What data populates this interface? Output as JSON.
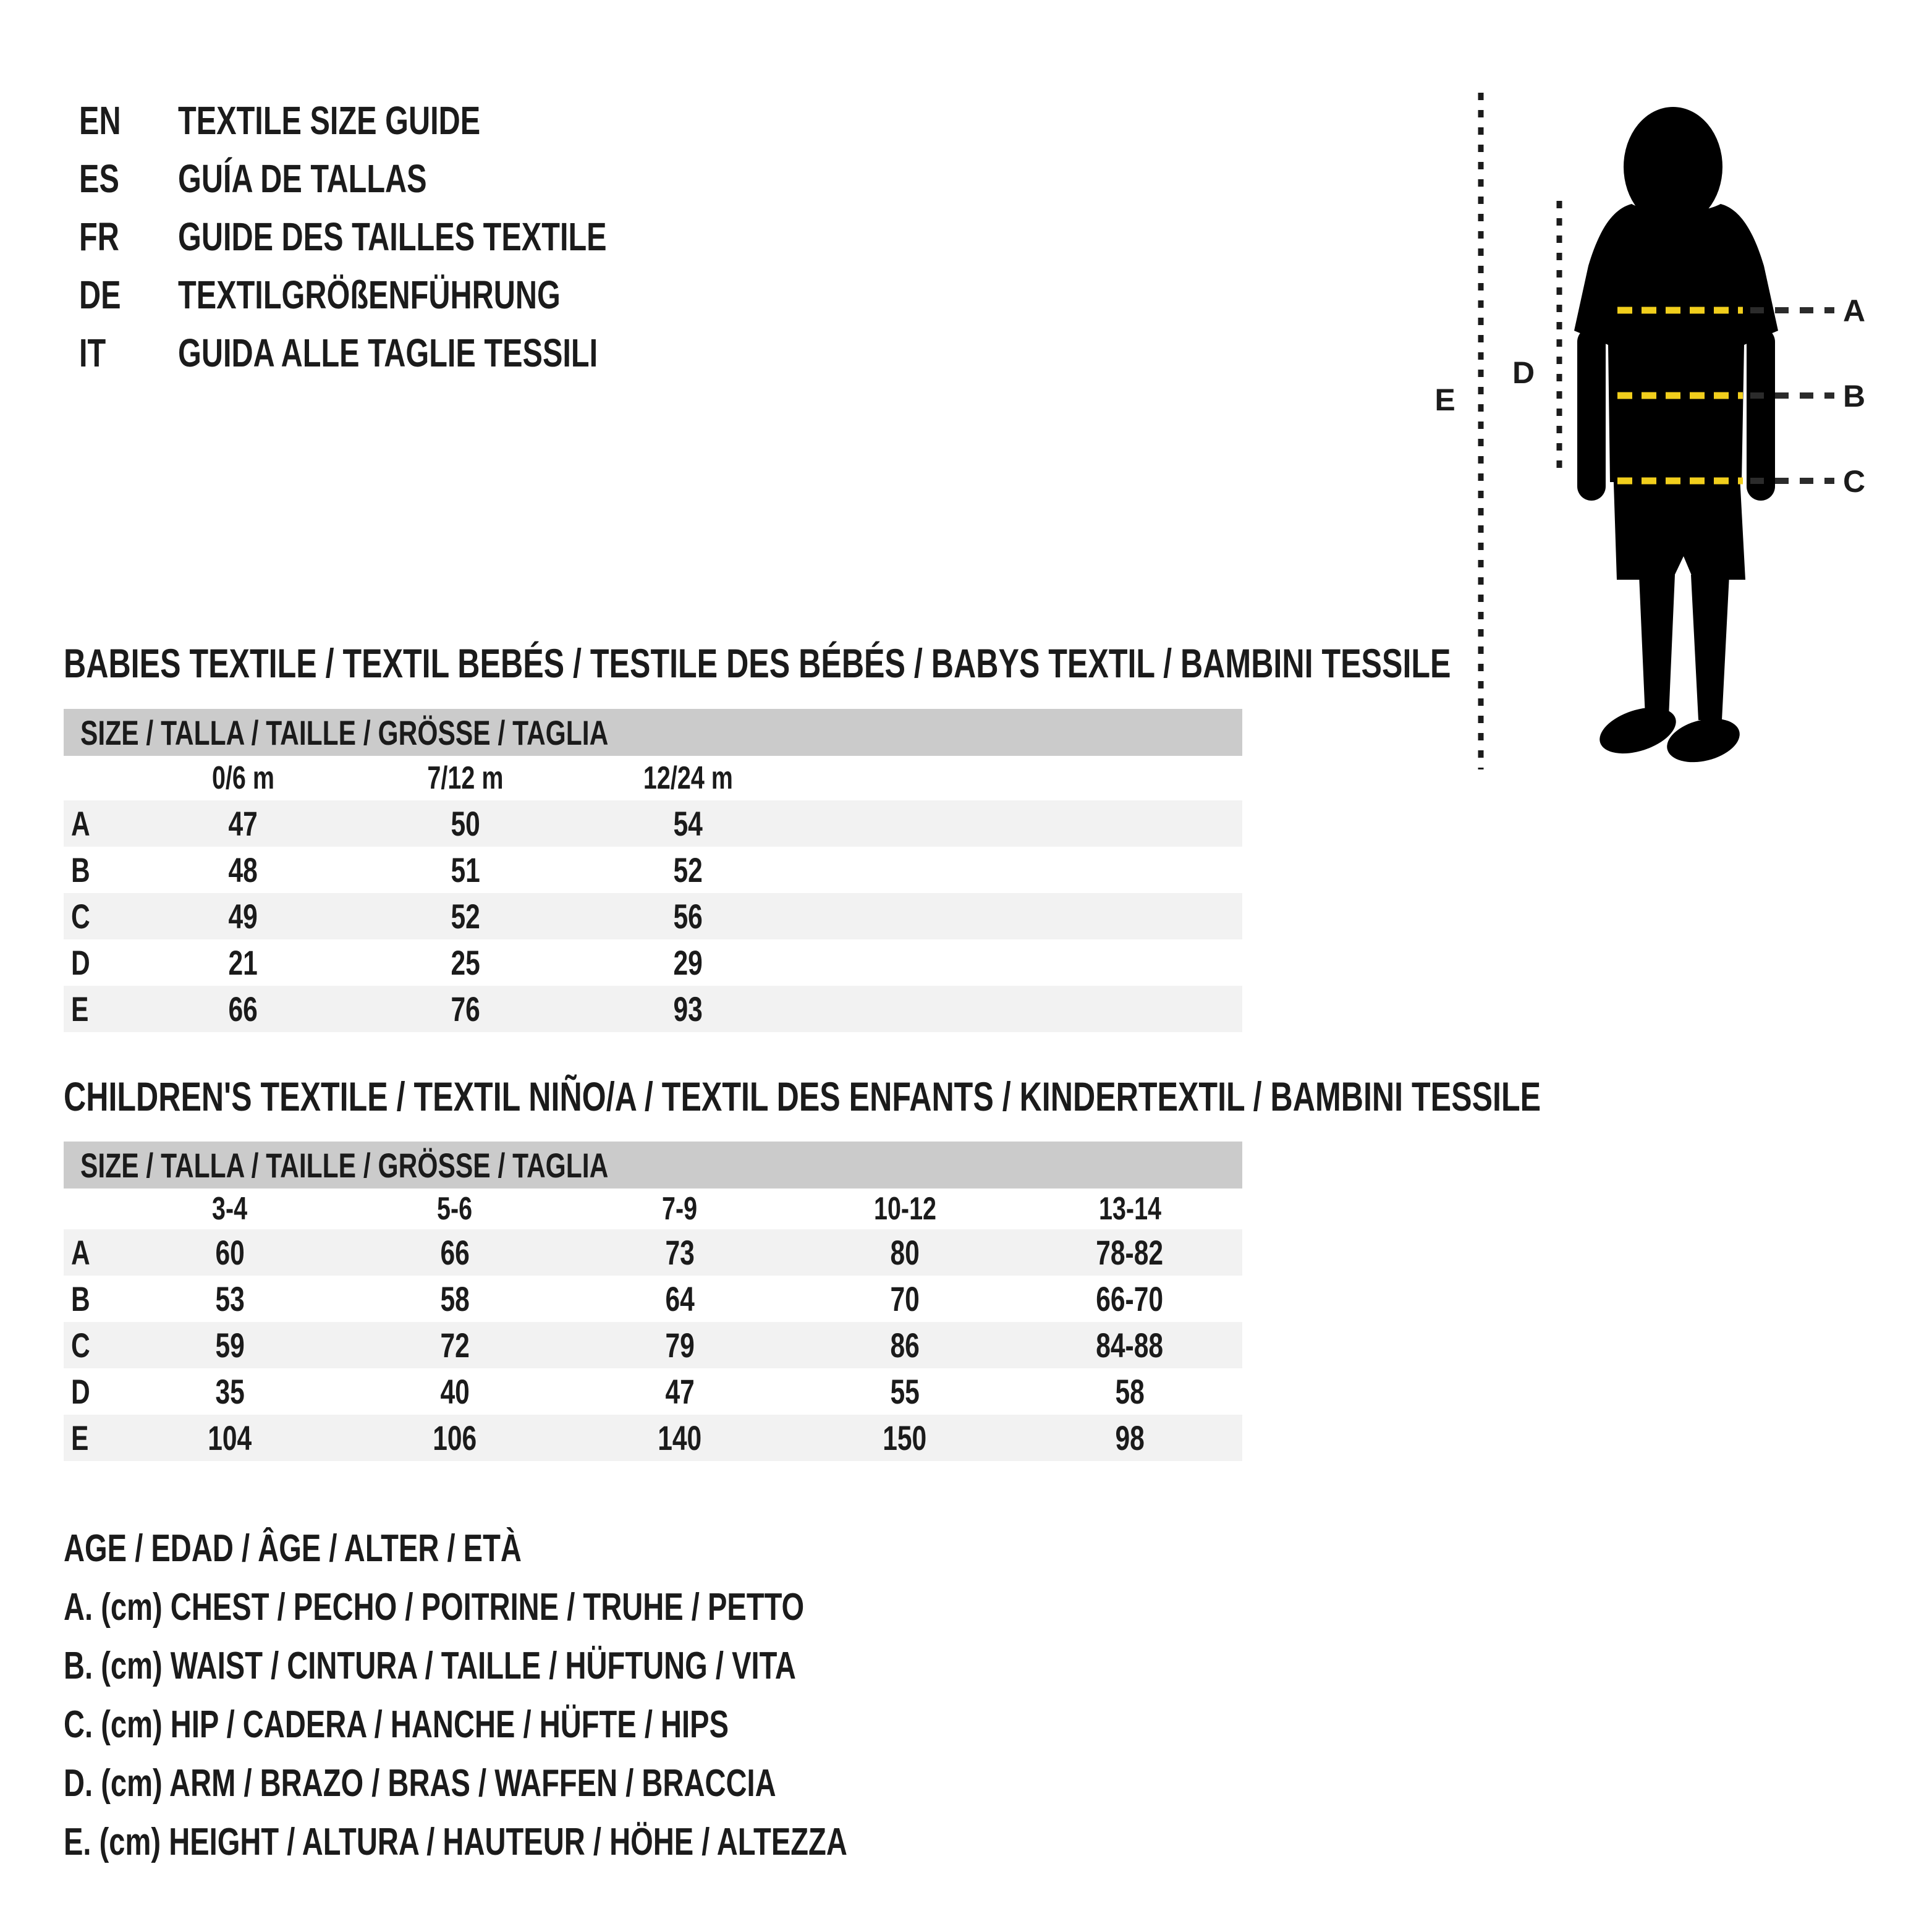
{
  "colors": {
    "text": "#1b1b1b",
    "header_bar": "#cbcbcb",
    "row_stripe": "#f2f2f2",
    "dash_yellow": "#f1ce1c",
    "dash_dark": "#2b2b2b",
    "silhouette": "#000000"
  },
  "languages": [
    {
      "code": "EN",
      "label": "TEXTILE SIZE GUIDE"
    },
    {
      "code": "ES",
      "label": "GUÍA DE TALLAS"
    },
    {
      "code": "FR",
      "label": "GUIDE DES TAILLES TEXTILE"
    },
    {
      "code": "DE",
      "label": "TEXTILGRÖßENFÜHRUNG"
    },
    {
      "code": "IT",
      "label": "GUIDA ALLE TAGLIE TESSILI"
    }
  ],
  "figure": {
    "markers": {
      "a": "A",
      "b": "B",
      "c": "C",
      "d": "D",
      "e": "E"
    }
  },
  "sections": [
    {
      "title": "BABIES TEXTILE / TEXTIL BEBÉS / TESTILE DES BÉBÉS / BABYS TEXTIL / BAMBINI TESSILE",
      "size_header": "SIZE / TALLA / TAILLE / GRÖSSE / TAGLIA",
      "columns": [
        "0/6 m",
        "7/12 m",
        "12/24 m"
      ],
      "rows": [
        {
          "label": "A",
          "values": [
            "47",
            "50",
            "54"
          ]
        },
        {
          "label": "B",
          "values": [
            "48",
            "51",
            "52"
          ]
        },
        {
          "label": "C",
          "values": [
            "49",
            "52",
            "56"
          ]
        },
        {
          "label": "D",
          "values": [
            "21",
            "25",
            "29"
          ]
        },
        {
          "label": "E",
          "values": [
            "66",
            "76",
            "93"
          ]
        }
      ]
    },
    {
      "title": "CHILDREN'S TEXTILE / TEXTIL NIÑO/A / TEXTIL DES ENFANTS / KINDERTEXTIL / BAMBINI TESSILE",
      "size_header": "SIZE / TALLA / TAILLE / GRÖSSE / TAGLIA",
      "columns": [
        "3-4",
        "5-6",
        "7-9",
        "10-12",
        "13-14"
      ],
      "rows": [
        {
          "label": "A",
          "values": [
            "60",
            "66",
            "73",
            "80",
            "78-82"
          ]
        },
        {
          "label": "B",
          "values": [
            "53",
            "58",
            "64",
            "70",
            "66-70"
          ]
        },
        {
          "label": "C",
          "values": [
            "59",
            "72",
            "79",
            "86",
            "84-88"
          ]
        },
        {
          "label": "D",
          "values": [
            "35",
            "40",
            "47",
            "55",
            "58"
          ]
        },
        {
          "label": "E",
          "values": [
            "104",
            "106",
            "140",
            "150",
            "98"
          ]
        }
      ]
    }
  ],
  "legend": [
    "AGE / EDAD / ÂGE / ALTER / ETÀ",
    "A. (cm) CHEST / PECHO / POITRINE / TRUHE / PETTO",
    "B. (cm) WAIST / CINTURA / TAILLE / HÜFTUNG / VITA",
    "C. (cm) HIP / CADERA / HANCHE / HÜFTE / HIPS",
    "D. (cm) ARM / BRAZO / BRAS / WAFFEN / BRACCIA",
    "E. (cm) HEIGHT / ALTURA / HAUTEUR / HÖHE / ALTEZZA"
  ]
}
